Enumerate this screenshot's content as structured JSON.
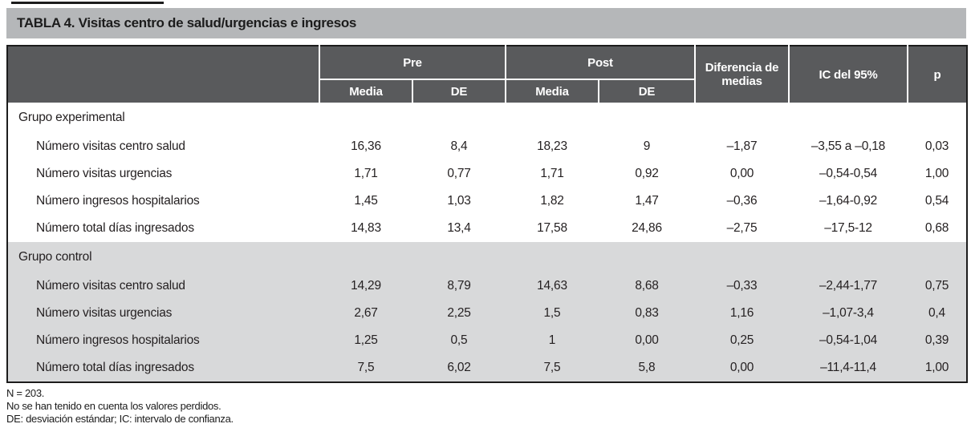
{
  "title": "TABLA 4. Visitas centro de salud/urgencias e ingresos",
  "table": {
    "header": {
      "pre": "Pre",
      "post": "Post",
      "media": "Media",
      "de": "DE",
      "diff": "Diferencia de medias",
      "ic": "IC del 95%",
      "p": "p"
    },
    "groups": [
      {
        "label": "Grupo experimental",
        "rows": [
          {
            "label": "Número visitas centro salud",
            "pre_media": "16,36",
            "pre_de": "8,4",
            "post_media": "18,23",
            "post_de": "9",
            "diff": "–1,87",
            "ic": "–3,55 a –0,18",
            "p": "0,03"
          },
          {
            "label": "Número visitas urgencias",
            "pre_media": "1,71",
            "pre_de": "0,77",
            "post_media": "1,71",
            "post_de": "0,92",
            "diff": "0,00",
            "ic": "–0,54-0,54",
            "p": "1,00"
          },
          {
            "label": "Número ingresos hospitalarios",
            "pre_media": "1,45",
            "pre_de": "1,03",
            "post_media": "1,82",
            "post_de": "1,47",
            "diff": "–0,36",
            "ic": "–1,64-0,92",
            "p": "0,54"
          },
          {
            "label": "Número total días ingresados",
            "pre_media": "14,83",
            "pre_de": "13,4",
            "post_media": "17,58",
            "post_de": "24,86",
            "diff": "–2,75",
            "ic": "–17,5-12",
            "p": "0,68"
          }
        ]
      },
      {
        "label": "Grupo control",
        "rows": [
          {
            "label": "Número visitas centro salud",
            "pre_media": "14,29",
            "pre_de": "8,79",
            "post_media": "14,63",
            "post_de": "8,68",
            "diff": "–0,33",
            "ic": "–2,44-1,77",
            "p": "0,75"
          },
          {
            "label": "Número visitas urgencias",
            "pre_media": "2,67",
            "pre_de": "2,25",
            "post_media": "1,5",
            "post_de": "0,83",
            "diff": "1,16",
            "ic": "–1,07-3,4",
            "p": "0,4"
          },
          {
            "label": "Número ingresos hospitalarios",
            "pre_media": "1,25",
            "pre_de": "0,5",
            "post_media": "1",
            "post_de": "0,00",
            "diff": "0,25",
            "ic": "–0,54-1,04",
            "p": "0,39"
          },
          {
            "label": "Número total días ingresados",
            "pre_media": "7,5",
            "pre_de": "6,02",
            "post_media": "7,5",
            "post_de": "5,8",
            "diff": "0,00",
            "ic": "–11,4-11,4",
            "p": "1,00"
          }
        ]
      }
    ]
  },
  "footnotes": [
    "N = 203.",
    "No se han tenido en cuenta los valores perdidos.",
    "DE: desviación estándar; IC: intervalo de confianza."
  ],
  "colors": {
    "title_bar_bg": "#b5b7b9",
    "header_bg": "#595a5c",
    "header_text": "#ffffff",
    "shaded_section_bg": "#d8d9da",
    "border": "#1c1c1c",
    "text": "#231f20"
  }
}
